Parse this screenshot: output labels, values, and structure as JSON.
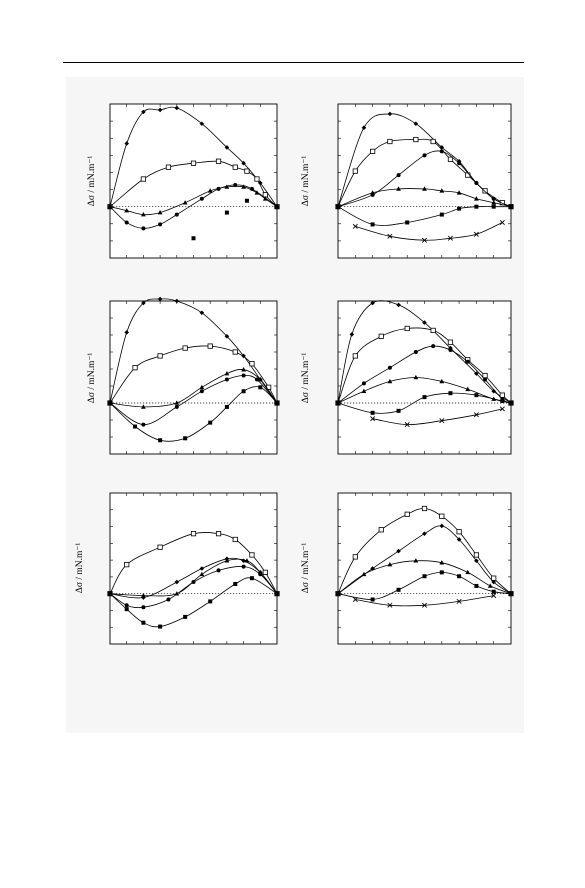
{
  "page": {
    "background": "#ffffff",
    "figure_background": "#f6f6f6"
  },
  "chart_data": [
    {
      "type": "line",
      "ylabel": "Δσ / mN.m⁻¹",
      "xlim": [
        0,
        1
      ],
      "ylim": [
        -1.3,
        2.6
      ],
      "reference_line": 0,
      "series": [
        {
          "marker": "diamond",
          "x": [
            0,
            0.1,
            0.2,
            0.3,
            0.4,
            0.55,
            0.7,
            0.8,
            0.9,
            1.0
          ],
          "y": [
            0,
            1.6,
            2.4,
            2.45,
            2.5,
            2.1,
            1.5,
            1.1,
            0.6,
            0
          ]
        },
        {
          "marker": "square-open",
          "x": [
            0,
            0.2,
            0.35,
            0.5,
            0.65,
            0.75,
            0.82,
            0.88,
            0.93,
            1.0
          ],
          "y": [
            0,
            0.7,
            1.0,
            1.1,
            1.15,
            1.0,
            0.9,
            0.7,
            0.3,
            0
          ]
        },
        {
          "marker": "triangle",
          "x": [
            0,
            0.1,
            0.2,
            0.3,
            0.45,
            0.6,
            0.7,
            0.8,
            0.88,
            0.93,
            1.0
          ],
          "y": [
            0,
            -0.1,
            -0.2,
            -0.15,
            0.1,
            0.4,
            0.5,
            0.5,
            0.35,
            0.2,
            0
          ]
        },
        {
          "marker": "circle",
          "x": [
            0,
            0.1,
            0.2,
            0.3,
            0.4,
            0.55,
            0.65,
            0.75,
            0.85,
            1.0
          ],
          "y": [
            0,
            -0.4,
            -0.55,
            -0.45,
            -0.2,
            0.2,
            0.45,
            0.55,
            0.45,
            0
          ]
        },
        {
          "marker": "square",
          "x": [
            0.5,
            0.7,
            0.82
          ],
          "y": [
            -0.8,
            -0.15,
            0.15
          ]
        }
      ]
    },
    {
      "type": "line",
      "ylabel": "Δσ / mN.m⁻¹",
      "xlim": [
        0,
        1
      ],
      "ylim": [
        -1.3,
        2.6
      ],
      "reference_line": 0,
      "series": [
        {
          "marker": "diamond",
          "x": [
            0,
            0.15,
            0.3,
            0.45,
            0.6,
            0.7,
            0.8,
            0.9,
            1.0
          ],
          "y": [
            0,
            2.0,
            2.35,
            2.1,
            1.5,
            1.15,
            0.6,
            0.2,
            0
          ]
        },
        {
          "marker": "square-open",
          "x": [
            0,
            0.1,
            0.2,
            0.3,
            0.45,
            0.55,
            0.65,
            0.75,
            0.85,
            0.95,
            1.0
          ],
          "y": [
            0,
            0.9,
            1.4,
            1.65,
            1.7,
            1.65,
            1.2,
            0.8,
            0.4,
            0.1,
            0
          ]
        },
        {
          "marker": "circle",
          "x": [
            0,
            0.2,
            0.35,
            0.5,
            0.6,
            0.7,
            0.8,
            0.9,
            1.0
          ],
          "y": [
            0,
            0.3,
            0.8,
            1.3,
            1.4,
            1.1,
            0.6,
            0.2,
            0
          ]
        },
        {
          "marker": "triangle",
          "x": [
            0,
            0.2,
            0.35,
            0.5,
            0.6,
            0.7,
            0.8,
            0.9,
            1.0
          ],
          "y": [
            0,
            0.35,
            0.45,
            0.45,
            0.4,
            0.35,
            0.2,
            0.1,
            0
          ]
        },
        {
          "marker": "square",
          "x": [
            0,
            0.2,
            0.4,
            0.6,
            0.7,
            0.8,
            0.9,
            1.0
          ],
          "y": [
            0,
            -0.45,
            -0.4,
            -0.2,
            -0.05,
            0,
            0,
            0
          ]
        },
        {
          "marker": "cross",
          "x": [
            0.1,
            0.3,
            0.5,
            0.65,
            0.8,
            0.95
          ],
          "y": [
            -0.5,
            -0.75,
            -0.85,
            -0.8,
            -0.7,
            -0.4
          ]
        }
      ]
    },
    {
      "type": "line",
      "ylabel": "Δσ / mN.m⁻¹",
      "xlim": [
        0,
        1
      ],
      "ylim": [
        -1.3,
        2.6
      ],
      "reference_line": 0,
      "series": [
        {
          "marker": "diamond",
          "x": [
            0,
            0.1,
            0.2,
            0.3,
            0.4,
            0.55,
            0.7,
            0.8,
            0.9,
            1.0
          ],
          "y": [
            0,
            1.8,
            2.55,
            2.65,
            2.6,
            2.3,
            1.7,
            1.2,
            0.6,
            0
          ]
        },
        {
          "marker": "square-open",
          "x": [
            0,
            0.15,
            0.3,
            0.45,
            0.6,
            0.75,
            0.85,
            0.95,
            1.0
          ],
          "y": [
            0,
            0.9,
            1.2,
            1.4,
            1.45,
            1.3,
            1.0,
            0.4,
            0
          ]
        },
        {
          "marker": "triangle",
          "x": [
            0,
            0.2,
            0.4,
            0.55,
            0.7,
            0.8,
            0.9,
            1.0
          ],
          "y": [
            0,
            -0.1,
            0.0,
            0.4,
            0.75,
            0.85,
            0.6,
            0
          ]
        },
        {
          "marker": "circle",
          "x": [
            0,
            0.2,
            0.4,
            0.55,
            0.7,
            0.8,
            0.88,
            1.0
          ],
          "y": [
            0,
            -0.55,
            -0.1,
            0.3,
            0.6,
            0.7,
            0.6,
            0
          ]
        },
        {
          "marker": "square",
          "x": [
            0,
            0.15,
            0.3,
            0.45,
            0.6,
            0.7,
            0.8,
            0.9,
            1.0
          ],
          "y": [
            0,
            -0.6,
            -0.95,
            -0.9,
            -0.5,
            -0.1,
            0.3,
            0.4,
            0
          ]
        }
      ]
    },
    {
      "type": "line",
      "ylabel": "Δσ / mN.m⁻¹",
      "xlim": [
        0,
        1
      ],
      "ylim": [
        -1.3,
        2.6
      ],
      "reference_line": 0,
      "series": [
        {
          "marker": "diamond",
          "x": [
            0,
            0.08,
            0.2,
            0.35,
            0.5,
            0.65,
            0.8,
            0.9,
            1.0
          ],
          "y": [
            0,
            1.75,
            2.55,
            2.5,
            2.05,
            1.4,
            0.75,
            0.3,
            0
          ]
        },
        {
          "marker": "square-open",
          "x": [
            0,
            0.1,
            0.25,
            0.4,
            0.55,
            0.65,
            0.75,
            0.85,
            0.95,
            1.0
          ],
          "y": [
            0,
            1.2,
            1.7,
            1.9,
            1.85,
            1.55,
            1.1,
            0.7,
            0.2,
            0
          ]
        },
        {
          "marker": "circle",
          "x": [
            0,
            0.15,
            0.3,
            0.45,
            0.55,
            0.65,
            0.75,
            0.85,
            0.95,
            1.0
          ],
          "y": [
            0,
            0.5,
            0.9,
            1.3,
            1.45,
            1.35,
            1.05,
            0.6,
            0.1,
            0
          ]
        },
        {
          "marker": "triangle",
          "x": [
            0,
            0.15,
            0.3,
            0.45,
            0.6,
            0.75,
            0.9,
            1.0
          ],
          "y": [
            0,
            0.3,
            0.55,
            0.65,
            0.55,
            0.35,
            0.1,
            0
          ]
        },
        {
          "marker": "square",
          "x": [
            0,
            0.2,
            0.35,
            0.5,
            0.65,
            0.8,
            0.95,
            1.0
          ],
          "y": [
            0,
            -0.25,
            -0.2,
            0.15,
            0.25,
            0.2,
            0.05,
            0
          ]
        },
        {
          "marker": "cross",
          "x": [
            0.2,
            0.4,
            0.6,
            0.8,
            0.95
          ],
          "y": [
            -0.4,
            -0.55,
            -0.45,
            -0.3,
            -0.15
          ]
        }
      ]
    },
    {
      "type": "line",
      "ylabel": "Δσ / mN.m⁻¹",
      "xlim": [
        0,
        1
      ],
      "ylim": [
        -1.3,
        2.6
      ],
      "reference_line": 0,
      "series": [
        {
          "marker": "square-open",
          "x": [
            0,
            0.1,
            0.3,
            0.5,
            0.65,
            0.75,
            0.85,
            0.93,
            1.0
          ],
          "y": [
            0,
            0.75,
            1.2,
            1.55,
            1.55,
            1.4,
            1.0,
            0.55,
            0
          ]
        },
        {
          "marker": "diamond",
          "x": [
            0,
            0.2,
            0.4,
            0.55,
            0.7,
            0.8,
            0.9,
            1.0
          ],
          "y": [
            0,
            -0.1,
            0.3,
            0.65,
            0.9,
            0.85,
            0.55,
            0
          ]
        },
        {
          "marker": "triangle",
          "x": [
            0,
            0.2,
            0.4,
            0.55,
            0.7,
            0.82,
            0.9,
            1.0
          ],
          "y": [
            0,
            -0.05,
            0.0,
            0.5,
            0.85,
            0.85,
            0.55,
            0
          ]
        },
        {
          "marker": "circle",
          "x": [
            0,
            0.1,
            0.2,
            0.35,
            0.5,
            0.65,
            0.8,
            0.9,
            1.0
          ],
          "y": [
            0,
            -0.3,
            -0.35,
            -0.15,
            0.3,
            0.6,
            0.7,
            0.5,
            0
          ]
        },
        {
          "marker": "square",
          "x": [
            0,
            0.1,
            0.2,
            0.3,
            0.45,
            0.6,
            0.75,
            0.85,
            1.0
          ],
          "y": [
            0,
            -0.4,
            -0.75,
            -0.85,
            -0.6,
            -0.2,
            0.25,
            0.4,
            0
          ]
        }
      ]
    },
    {
      "type": "line",
      "ylabel": "Δσ / mN.m⁻¹",
      "xlim": [
        0,
        1
      ],
      "ylim": [
        -1.3,
        2.6
      ],
      "reference_line": 0,
      "series": [
        {
          "marker": "square-open",
          "x": [
            0,
            0.1,
            0.25,
            0.4,
            0.5,
            0.6,
            0.7,
            0.8,
            0.9,
            1.0
          ],
          "y": [
            0,
            0.95,
            1.65,
            2.05,
            2.2,
            2.0,
            1.6,
            1.0,
            0.4,
            0
          ]
        },
        {
          "marker": "diamond",
          "x": [
            0,
            0.2,
            0.35,
            0.5,
            0.6,
            0.7,
            0.8,
            0.9,
            1.0
          ],
          "y": [
            0,
            0.65,
            1.1,
            1.55,
            1.75,
            1.4,
            0.85,
            0.3,
            0
          ]
        },
        {
          "marker": "triangle",
          "x": [
            0,
            0.15,
            0.3,
            0.45,
            0.6,
            0.75,
            0.88,
            1.0
          ],
          "y": [
            0,
            0.5,
            0.75,
            0.85,
            0.8,
            0.55,
            0.2,
            0
          ]
        },
        {
          "marker": "square",
          "x": [
            0,
            0.2,
            0.35,
            0.5,
            0.6,
            0.7,
            0.8,
            0.9,
            1.0
          ],
          "y": [
            0,
            -0.15,
            0.1,
            0.45,
            0.55,
            0.45,
            0.2,
            0.05,
            0
          ]
        },
        {
          "marker": "cross",
          "x": [
            0.1,
            0.3,
            0.5,
            0.7,
            0.9
          ],
          "y": [
            -0.15,
            -0.3,
            -0.3,
            -0.2,
            -0.05
          ]
        }
      ]
    }
  ]
}
